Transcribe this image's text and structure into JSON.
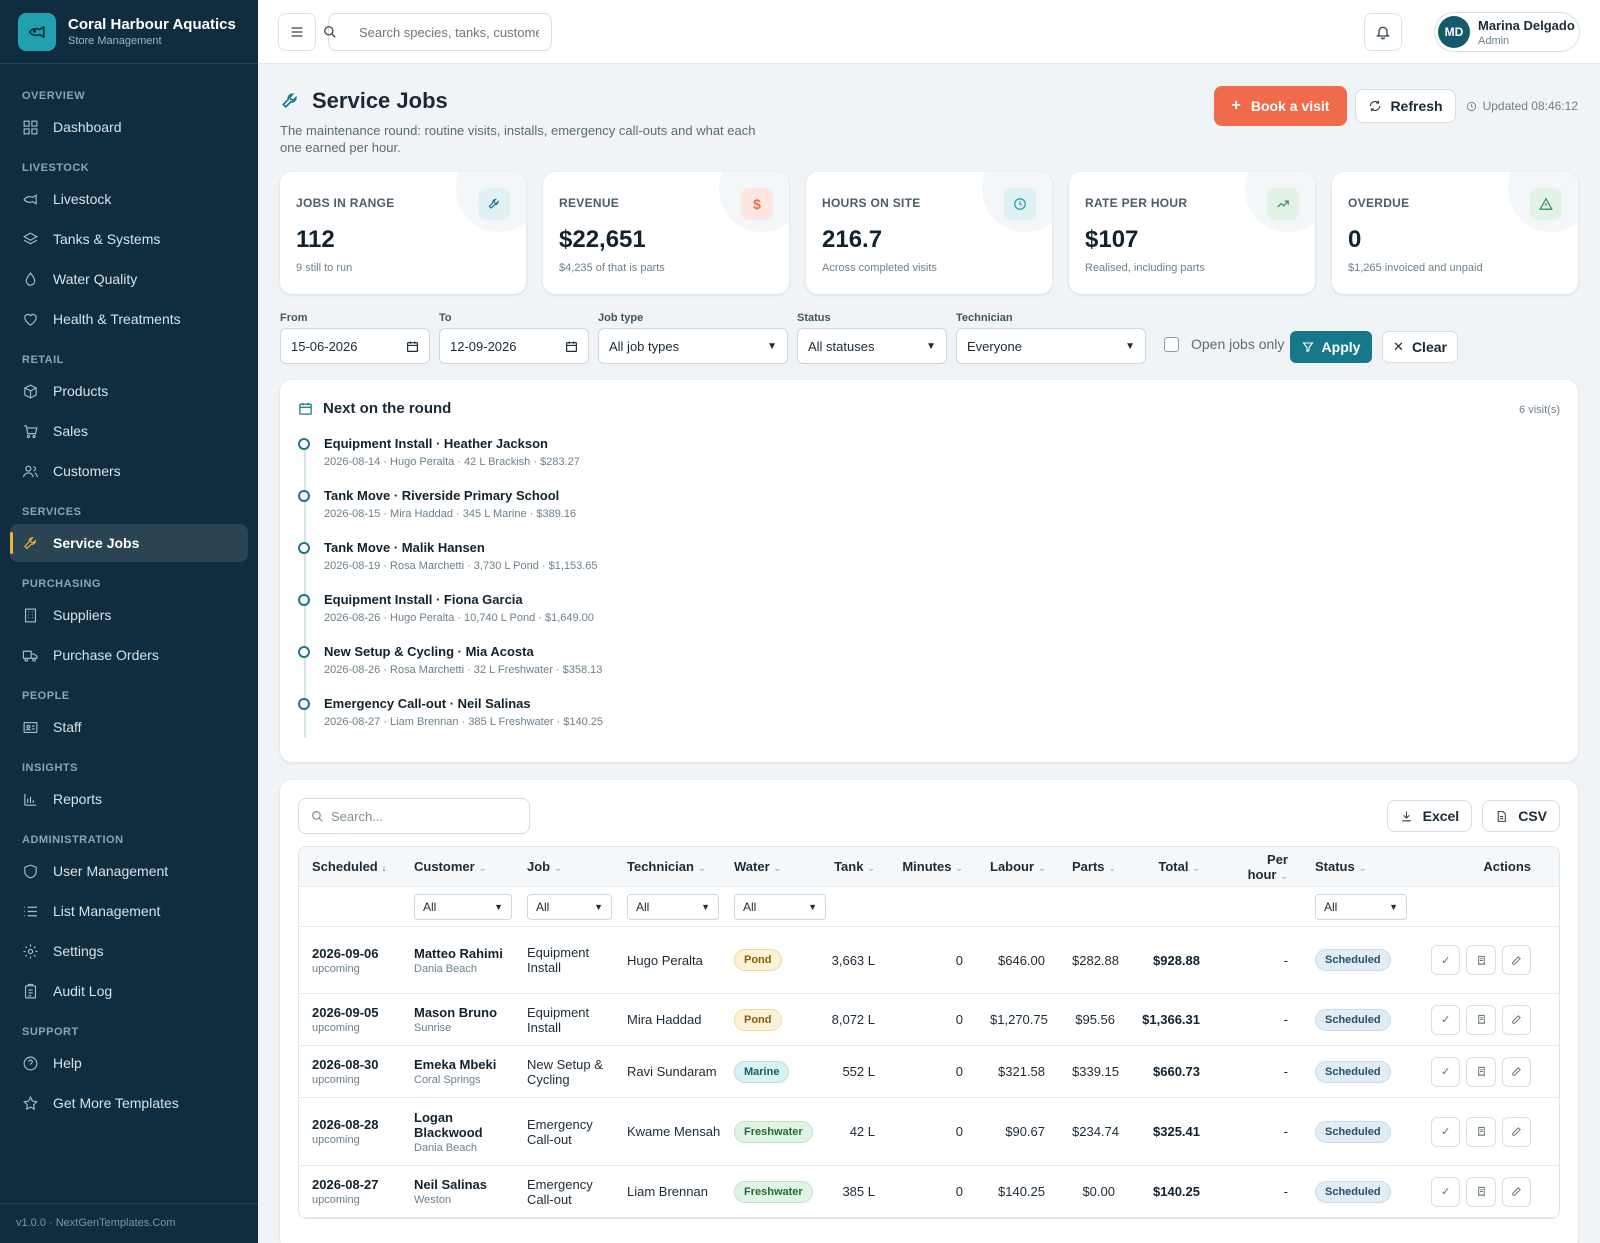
{
  "brand": {
    "name": "Coral Harbour Aquatics",
    "subtitle": "Store Management"
  },
  "nav": {
    "overview": "OVERVIEW",
    "dashboard": "Dashboard",
    "livestock_section": "LIVESTOCK",
    "livestock": "Livestock",
    "tanks": "Tanks & Systems",
    "water": "Water Quality",
    "health": "Health & Treatments",
    "retail": "RETAIL",
    "products": "Products",
    "sales": "Sales",
    "customers": "Customers",
    "services": "SERVICES",
    "service_jobs": "Service Jobs",
    "purchasing": "PURCHASING",
    "suppliers": "Suppliers",
    "purchase_orders": "Purchase Orders",
    "people": "PEOPLE",
    "staff": "Staff",
    "insights": "INSIGHTS",
    "reports": "Reports",
    "administration": "ADMINISTRATION",
    "user_mgmt": "User Management",
    "list_mgmt": "List Management",
    "settings": "Settings",
    "audit": "Audit Log",
    "support": "SUPPORT",
    "help": "Help",
    "templates": "Get More Templates"
  },
  "footer": "v1.0.0 · NextGenTemplates.Com",
  "topbar": {
    "search_placeholder": "Search species, tanks, customers",
    "user_initials": "MD",
    "user_name": "Marina Delgado",
    "user_role": "Admin"
  },
  "page": {
    "title": "Service Jobs",
    "subtitle": "The maintenance round: routine visits, installs, emergency call-outs and what each one earned per hour.",
    "book": "Book a visit",
    "refresh": "Refresh",
    "updated": "Updated 08:46:12"
  },
  "kpis": [
    {
      "label": "JOBS IN RANGE",
      "value": "112",
      "note": "9 still to run"
    },
    {
      "label": "REVENUE",
      "value": "$22,651",
      "note": "$4,235 of that is parts"
    },
    {
      "label": "HOURS ON SITE",
      "value": "216.7",
      "note": "Across completed visits"
    },
    {
      "label": "RATE PER HOUR",
      "value": "$107",
      "note": "Realised, including parts"
    },
    {
      "label": "OVERDUE",
      "value": "0",
      "note": "$1,265 invoiced and unpaid"
    }
  ],
  "filters": {
    "from_label": "From",
    "from": "15-06-2026",
    "to_label": "To",
    "to": "12-09-2026",
    "type_label": "Job type",
    "type": "All job types",
    "status_label": "Status",
    "status": "All statuses",
    "tech_label": "Technician",
    "tech": "Everyone",
    "open_only": "Open jobs only",
    "apply": "Apply",
    "clear": "Clear"
  },
  "round": {
    "title": "Next on the round",
    "count": "6 visit(s)",
    "items": [
      {
        "title": "Equipment Install · Heather Jackson",
        "meta": "2026-08-14 · Hugo Peralta · 42 L Brackish · $283.27"
      },
      {
        "title": "Tank Move · Riverside Primary School",
        "meta": "2026-08-15 · Mira Haddad · 345 L Marine · $389.16"
      },
      {
        "title": "Tank Move · Malik Hansen",
        "meta": "2026-08-19 · Rosa Marchetti · 3,730 L Pond · $1,153.65"
      },
      {
        "title": "Equipment Install · Fiona Garcia",
        "meta": "2026-08-26 · Hugo Peralta · 10,740 L Pond · $1,649.00"
      },
      {
        "title": "New Setup & Cycling · Mia Acosta",
        "meta": "2026-08-26 · Rosa Marchetti · 32 L Freshwater · $358.13"
      },
      {
        "title": "Emergency Call-out · Neil Salinas",
        "meta": "2026-08-27 · Liam Brennan · 385 L Freshwater · $140.25"
      }
    ]
  },
  "table": {
    "search_placeholder": "Search...",
    "excel": "Excel",
    "csv": "CSV",
    "headers": {
      "scheduled": "Scheduled",
      "customer": "Customer",
      "job": "Job",
      "technician": "Technician",
      "water": "Water",
      "tank": "Tank",
      "minutes": "Minutes",
      "labour": "Labour",
      "parts": "Parts",
      "total": "Total",
      "per_hour": "Per hour",
      "status": "Status",
      "actions": "Actions"
    },
    "filter_all": "All",
    "rows": [
      {
        "date": "2026-09-06",
        "when": "upcoming",
        "customer": "Matteo Rahimi",
        "city": "Dania Beach",
        "job": "Equipment Install",
        "tech": "Hugo Peralta",
        "water": "Pond",
        "tank": "3,663 L",
        "minutes": "0",
        "labour": "$646.00",
        "parts": "$282.88",
        "total": "$928.88",
        "per_hour": "-",
        "status": "Scheduled"
      },
      {
        "date": "2026-09-05",
        "when": "upcoming",
        "customer": "Mason Bruno",
        "city": "Sunrise",
        "job": "Equipment Install",
        "tech": "Mira Haddad",
        "water": "Pond",
        "tank": "8,072 L",
        "minutes": "0",
        "labour": "$1,270.75",
        "parts": "$95.56",
        "total": "$1,366.31",
        "per_hour": "-",
        "status": "Scheduled"
      },
      {
        "date": "2026-08-30",
        "when": "upcoming",
        "customer": "Emeka Mbeki",
        "city": "Coral Springs",
        "job": "New Setup & Cycling",
        "tech": "Ravi Sundaram",
        "water": "Marine",
        "tank": "552 L",
        "minutes": "0",
        "labour": "$321.58",
        "parts": "$339.15",
        "total": "$660.73",
        "per_hour": "-",
        "status": "Scheduled"
      },
      {
        "date": "2026-08-28",
        "when": "upcoming",
        "customer": "Logan Blackwood",
        "city": "Dania Beach",
        "job": "Emergency Call-out",
        "tech": "Kwame Mensah",
        "water": "Freshwater",
        "tank": "42 L",
        "minutes": "0",
        "labour": "$90.67",
        "parts": "$234.74",
        "total": "$325.41",
        "per_hour": "-",
        "status": "Scheduled"
      },
      {
        "date": "2026-08-27",
        "when": "upcoming",
        "customer": "Neil Salinas",
        "city": "Weston",
        "job": "Emergency Call-out",
        "tech": "Liam Brennan",
        "water": "Freshwater",
        "tank": "385 L",
        "minutes": "0",
        "labour": "$140.25",
        "parts": "$0.00",
        "total": "$140.25",
        "per_hour": "-",
        "status": "Scheduled"
      }
    ]
  }
}
